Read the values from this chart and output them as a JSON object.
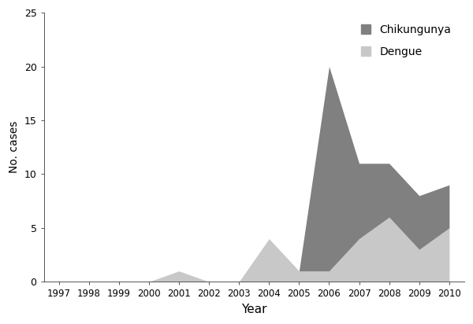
{
  "years": [
    1997,
    1998,
    1999,
    2000,
    2001,
    2002,
    2003,
    2004,
    2005,
    2006,
    2007,
    2008,
    2009,
    2010
  ],
  "dengue": [
    0,
    0,
    0,
    0,
    1,
    0,
    0,
    4,
    1,
    1,
    4,
    6,
    3,
    5
  ],
  "chikungunya": [
    0,
    0,
    0,
    0,
    0,
    0,
    0,
    0,
    0,
    19,
    7,
    5,
    5,
    4
  ],
  "chikungunya_color": "#808080",
  "dengue_color": "#c8c8c8",
  "xlabel": "Year",
  "ylabel": "No. cases",
  "ylim": [
    0,
    25
  ],
  "yticks": [
    0,
    5,
    10,
    15,
    20,
    25
  ],
  "xticks": [
    1997,
    1998,
    1999,
    2000,
    2001,
    2002,
    2003,
    2004,
    2005,
    2006,
    2007,
    2008,
    2009,
    2010
  ],
  "legend_chikungunya": "Chikungunya",
  "legend_dengue": "Dengue",
  "background_color": "#ffffff"
}
